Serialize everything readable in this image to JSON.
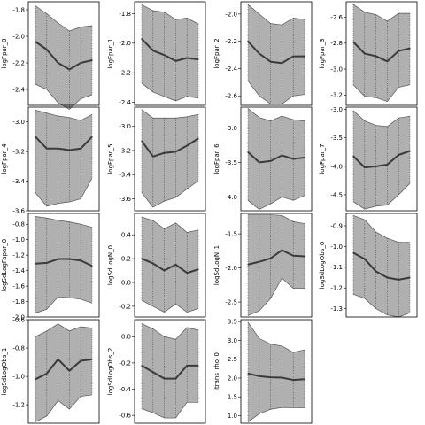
{
  "chart_data": [
    {
      "type": "area",
      "ylabel": "logFpar_0",
      "yticks": [
        -2.4,
        -2.2,
        -2.0,
        -1.8
      ],
      "ylim": [
        -2.52,
        -1.74
      ],
      "x": [
        0,
        1,
        2,
        3,
        4,
        5
      ],
      "mean": [
        -2.04,
        -2.1,
        -2.2,
        -2.25,
        -2.2,
        -2.18
      ],
      "lower": [
        -2.36,
        -2.4,
        -2.5,
        -2.55,
        -2.47,
        -2.44
      ],
      "upper": [
        -1.77,
        -1.83,
        -1.9,
        -1.96,
        -1.93,
        -1.92
      ]
    },
    {
      "type": "area",
      "ylabel": "logFpar_4",
      "yticks": [
        -3.6,
        -3.4,
        -3.2,
        -3.0
      ],
      "ylim": [
        -3.6,
        -2.9
      ],
      "x": [
        0,
        1,
        2,
        3,
        4,
        5
      ],
      "mean": [
        -3.1,
        -3.18,
        -3.18,
        -3.19,
        -3.18,
        -3.1
      ],
      "lower": [
        -3.48,
        -3.57,
        -3.55,
        -3.54,
        -3.52,
        -3.38
      ],
      "upper": [
        -2.92,
        -2.94,
        -2.96,
        -2.97,
        -2.99,
        -2.95
      ]
    },
    {
      "type": "area",
      "ylabel": "logSdLogFapar_0",
      "yticks": [
        -2.0,
        -1.8,
        -1.6,
        -1.4,
        -1.2,
        -1.0,
        -0.8
      ],
      "ylim": [
        -2.0,
        -0.66
      ],
      "x": [
        0,
        1,
        2,
        3,
        4,
        5
      ],
      "mean": [
        -1.31,
        -1.3,
        -1.25,
        -1.25,
        -1.27,
        -1.34
      ],
      "lower": [
        -1.95,
        -1.9,
        -1.74,
        -1.75,
        -1.77,
        -1.82
      ],
      "upper": [
        -0.7,
        -0.72,
        -0.75,
        -0.77,
        -0.8,
        -0.84
      ]
    },
    {
      "type": "area",
      "ylabel": "logSdLogObs_1",
      "yticks": [
        -1.2,
        -1.0,
        -0.8,
        -0.6
      ],
      "ylim": [
        -1.33,
        -0.6
      ],
      "x": [
        0,
        1,
        2,
        3,
        4,
        5
      ],
      "mean": [
        -1.02,
        -0.98,
        -0.88,
        -0.96,
        -0.89,
        -0.88
      ],
      "lower": [
        -1.32,
        -1.28,
        -1.17,
        -1.23,
        -1.14,
        -1.13
      ],
      "upper": [
        -0.72,
        -0.68,
        -0.63,
        -0.68,
        -0.65,
        -0.66
      ]
    },
    {
      "type": "area",
      "ylabel": "logFpar_1",
      "yticks": [
        -2.4,
        -2.2,
        -2.0,
        -1.8
      ],
      "ylim": [
        -2.42,
        -1.72
      ],
      "x": [
        0,
        1,
        2,
        3,
        4,
        5
      ],
      "mean": [
        -1.97,
        -2.05,
        -2.08,
        -2.12,
        -2.1,
        -2.11
      ],
      "lower": [
        -2.27,
        -2.33,
        -2.36,
        -2.39,
        -2.36,
        -2.37
      ],
      "upper": [
        -1.74,
        -1.78,
        -1.79,
        -1.84,
        -1.83,
        -1.87
      ]
    },
    {
      "type": "area",
      "ylabel": "logFpar_5",
      "yticks": [
        -3.6,
        -3.4,
        -3.2,
        -3.0
      ],
      "ylim": [
        -3.7,
        -2.84
      ],
      "x": [
        0,
        1,
        2,
        3,
        4,
        5
      ],
      "mean": [
        -3.12,
        -3.25,
        -3.22,
        -3.21,
        -3.16,
        -3.1
      ],
      "lower": [
        -3.55,
        -3.67,
        -3.62,
        -3.59,
        -3.52,
        -3.45
      ],
      "upper": [
        -2.86,
        -2.93,
        -2.93,
        -2.93,
        -2.92,
        -2.9
      ]
    },
    {
      "type": "area",
      "ylabel": "logSdLogN_0",
      "yticks": [
        -0.2,
        0.0,
        0.2,
        0.4
      ],
      "ylim": [
        -0.29,
        0.58
      ],
      "x": [
        0,
        1,
        2,
        3,
        4,
        5
      ],
      "mean": [
        0.2,
        0.16,
        0.1,
        0.15,
        0.08,
        0.11
      ],
      "lower": [
        -0.15,
        -0.2,
        -0.25,
        -0.18,
        -0.25,
        -0.22
      ],
      "upper": [
        0.55,
        0.52,
        0.45,
        0.5,
        0.42,
        0.44
      ]
    },
    {
      "type": "area",
      "ylabel": "logSdLogObs_2",
      "yticks": [
        -0.6,
        -0.4,
        -0.2,
        0.0
      ],
      "ylim": [
        -0.66,
        0.13
      ],
      "x": [
        0,
        1,
        2,
        3,
        4,
        5
      ],
      "mean": [
        -0.22,
        -0.27,
        -0.32,
        -0.32,
        -0.22,
        -0.22
      ],
      "lower": [
        -0.55,
        -0.58,
        -0.62,
        -0.62,
        -0.5,
        -0.5
      ],
      "upper": [
        0.1,
        0.06,
        0.0,
        -0.02,
        0.07,
        0.05
      ]
    },
    {
      "type": "area",
      "ylabel": "logFpar_2",
      "yticks": [
        -2.6,
        -2.4,
        -2.2,
        -2.0
      ],
      "ylim": [
        -2.67,
        -1.91
      ],
      "x": [
        0,
        1,
        2,
        3,
        4,
        5
      ],
      "mean": [
        -2.2,
        -2.29,
        -2.35,
        -2.36,
        -2.31,
        -2.31
      ],
      "lower": [
        -2.49,
        -2.6,
        -2.66,
        -2.66,
        -2.6,
        -2.59
      ],
      "upper": [
        -1.93,
        -2.0,
        -2.07,
        -2.08,
        -2.03,
        -2.04
      ]
    },
    {
      "type": "area",
      "ylabel": "logFpar_6",
      "yticks": [
        -4.0,
        -3.5,
        -3.0
      ],
      "ylim": [
        -4.2,
        -2.7
      ],
      "x": [
        0,
        1,
        2,
        3,
        4,
        5
      ],
      "mean": [
        -3.35,
        -3.5,
        -3.48,
        -3.4,
        -3.45,
        -3.43
      ],
      "lower": [
        -4.05,
        -4.18,
        -4.1,
        -4.0,
        -4.05,
        -3.98
      ],
      "upper": [
        -2.72,
        -2.85,
        -2.9,
        -2.83,
        -2.88,
        -2.9
      ]
    },
    {
      "type": "area",
      "ylabel": "logSdLogN_1",
      "yticks": [
        -2.5,
        -2.0,
        -1.5
      ],
      "ylim": [
        -2.72,
        -1.2
      ],
      "x": [
        0,
        1,
        2,
        3,
        4,
        5
      ],
      "mean": [
        -1.95,
        -1.91,
        -1.86,
        -1.74,
        -1.82,
        -1.83
      ],
      "lower": [
        -2.7,
        -2.63,
        -2.45,
        -2.15,
        -2.3,
        -2.3
      ],
      "upper": [
        -1.22,
        -1.22,
        -1.22,
        -1.23,
        -1.32,
        -1.35
      ]
    },
    {
      "type": "area",
      "ylabel": "itrans_rho_0",
      "yticks": [
        1.0,
        1.5,
        2.0,
        2.5,
        3.0,
        3.5
      ],
      "ylim": [
        0.8,
        3.55
      ],
      "x": [
        0,
        1,
        2,
        3,
        4,
        5
      ],
      "mean": [
        2.12,
        2.05,
        2.02,
        2.01,
        1.95,
        1.97
      ],
      "lower": [
        0.83,
        1.05,
        1.17,
        1.22,
        1.21,
        1.21
      ],
      "upper": [
        3.48,
        3.05,
        2.9,
        2.85,
        2.68,
        2.75
      ]
    },
    {
      "type": "area",
      "ylabel": "logFpar_3",
      "yticks": [
        -3.2,
        -3.0,
        -2.8,
        -2.6
      ],
      "ylim": [
        -3.28,
        -2.48
      ],
      "x": [
        0,
        1,
        2,
        3,
        4,
        5
      ],
      "mean": [
        -2.79,
        -2.88,
        -2.9,
        -2.94,
        -2.86,
        -2.84
      ],
      "lower": [
        -3.12,
        -3.21,
        -3.22,
        -3.25,
        -3.14,
        -3.12
      ],
      "upper": [
        -2.5,
        -2.56,
        -2.58,
        -2.63,
        -2.57,
        -2.57
      ]
    },
    {
      "type": "area",
      "ylabel": "logFpar_7",
      "yticks": [
        -4.5,
        -4.0,
        -3.5,
        -3.0
      ],
      "ylim": [
        -4.78,
        -2.96
      ],
      "x": [
        0,
        1,
        2,
        3,
        4,
        5
      ],
      "mean": [
        -3.82,
        -4.02,
        -4.0,
        -3.97,
        -3.8,
        -3.73
      ],
      "lower": [
        -4.62,
        -4.75,
        -4.7,
        -4.68,
        -4.5,
        -4.3
      ],
      "upper": [
        -3.02,
        -3.2,
        -3.28,
        -3.3,
        -3.15,
        -3.12
      ]
    },
    {
      "type": "area",
      "ylabel": "logSdLogObs_0",
      "yticks": [
        -1.3,
        -1.2,
        -1.1,
        -1.0,
        -0.9
      ],
      "ylim": [
        -1.34,
        -0.84
      ],
      "x": [
        0,
        1,
        2,
        3,
        4,
        5
      ],
      "mean": [
        -1.03,
        -1.06,
        -1.12,
        -1.15,
        -1.16,
        -1.15
      ],
      "lower": [
        -1.23,
        -1.25,
        -1.3,
        -1.33,
        -1.34,
        -1.32
      ],
      "upper": [
        -0.85,
        -0.87,
        -0.93,
        -0.96,
        -0.98,
        -0.98
      ]
    }
  ]
}
